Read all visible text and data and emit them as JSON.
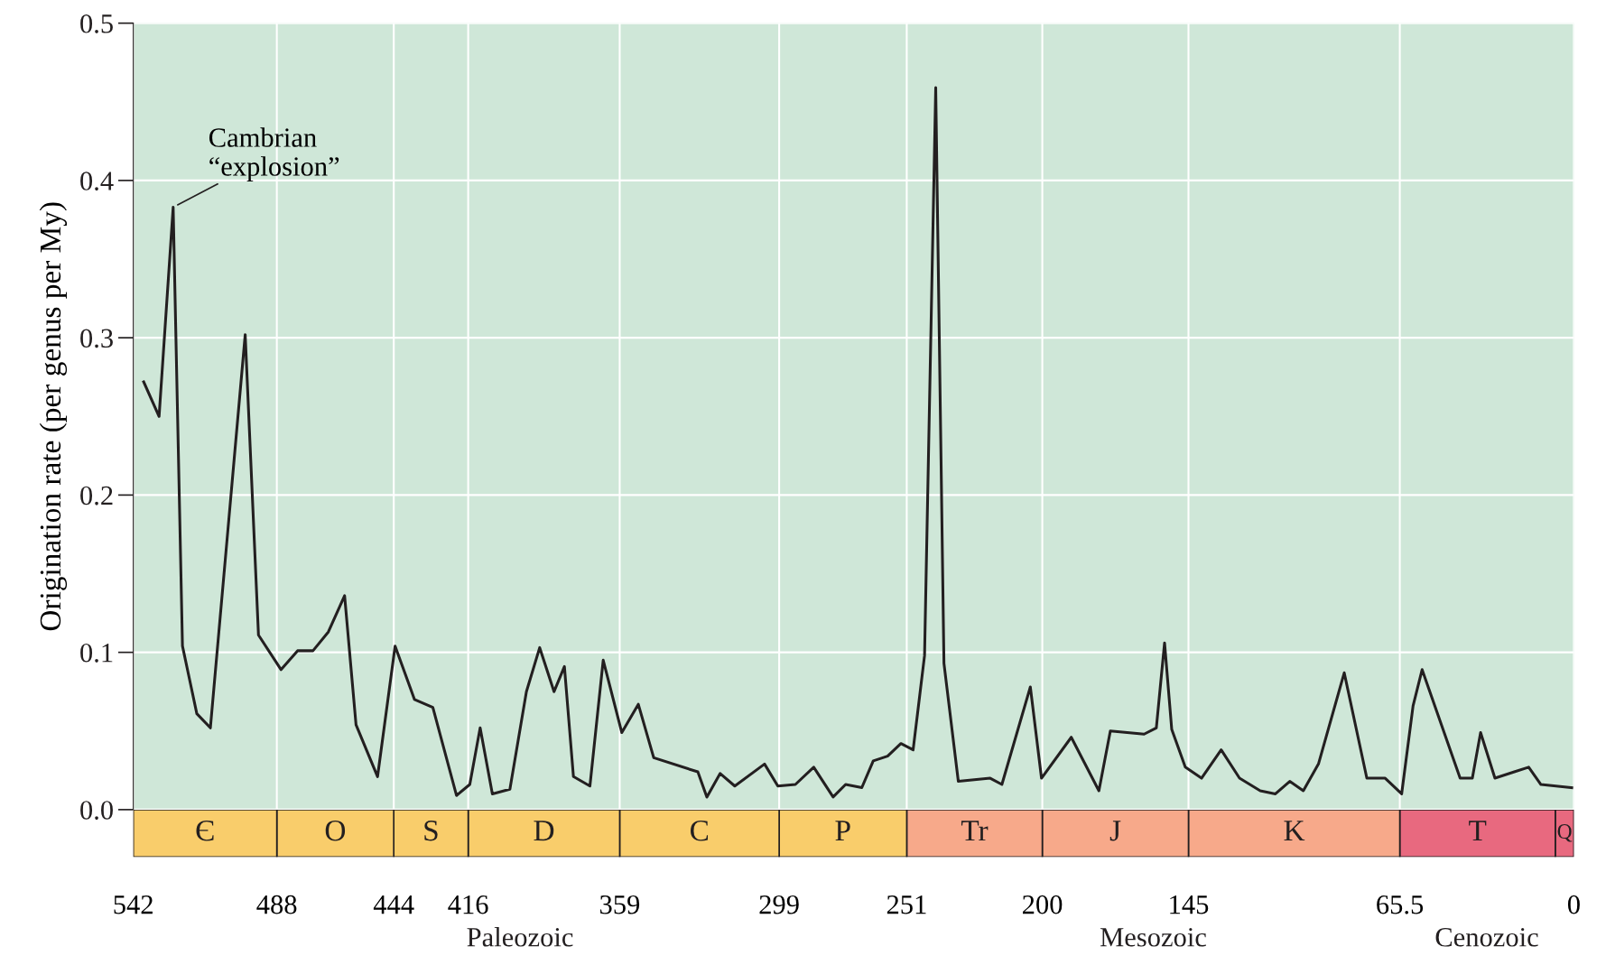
{
  "chart_data": [
    {
      "type": "line",
      "ylabel": "Origination rate (per genus per My)",
      "x": [
        538.1,
        532.3,
        527.0,
        523.5,
        518.1,
        513.0,
        499.9,
        494.9,
        486.4,
        480.2,
        474.4,
        468.6,
        462.5,
        458.2,
        450.1,
        443.5,
        436.2,
        429.3,
        420.4,
        415.4,
        411.5,
        406.9,
        400.3,
        394.1,
        389.1,
        383.7,
        379.8,
        376.4,
        370.2,
        365.2,
        358.2,
        352.0,
        346.2,
        329.6,
        326.2,
        321.2,
        315.7,
        304.5,
        299.5,
        292.9,
        286.0,
        278.7,
        274.0,
        267.9,
        263.6,
        258.2,
        253.2,
        248.6,
        244.3,
        240.1,
        237.0,
        231.6,
        219.6,
        215.2,
        204.5,
        200.3,
        189.1,
        178.7,
        174.4,
        161.7,
        157.1,
        154.0,
        151.3,
        146.2,
        140.1,
        132.7,
        125.8,
        118.0,
        112.3,
        106.9,
        101.8,
        96.1,
        86.4,
        77.9,
        71.0,
        64.8,
        60.5,
        57.1,
        42.8,
        38.2,
        35.1,
        29.7,
        22.4,
        17.0,
        12.4,
        0.8
      ],
      "series": [
        {
          "color": "#231f20",
          "values": [
            0.272,
            0.25,
            0.383,
            0.104,
            0.061,
            0.052,
            0.302,
            0.111,
            0.089,
            0.101,
            0.101,
            0.113,
            0.136,
            0.054,
            0.021,
            0.104,
            0.07,
            0.065,
            0.009,
            0.016,
            0.052,
            0.01,
            0.013,
            0.075,
            0.103,
            0.075,
            0.091,
            0.021,
            0.015,
            0.095,
            0.049,
            0.067,
            0.033,
            0.024,
            0.008,
            0.023,
            0.015,
            0.029,
            0.015,
            0.016,
            0.027,
            0.008,
            0.016,
            0.014,
            0.031,
            0.034,
            0.042,
            0.038,
            0.098,
            0.459,
            0.093,
            0.018,
            0.02,
            0.016,
            0.078,
            0.02,
            0.046,
            0.012,
            0.05,
            0.048,
            0.052,
            0.106,
            0.051,
            0.027,
            0.02,
            0.038,
            0.02,
            0.012,
            0.01,
            0.018,
            0.012,
            0.029,
            0.087,
            0.02,
            0.02,
            0.01,
            0.066,
            0.089,
            0.02,
            0.02,
            0.049,
            0.02,
            0.024,
            0.027,
            0.016,
            0.014
          ]
        }
      ],
      "xlim": [
        542,
        0
      ],
      "ylim": [
        0,
        0.5
      ],
      "xticks": [
        542,
        488,
        444,
        416,
        359,
        299,
        251,
        200,
        145,
        65.5,
        0
      ],
      "yticks": [
        {
          "value": 0,
          "label": "0.0"
        },
        0.1,
        0.2,
        0.3,
        0.4,
        0.5
      ],
      "tick_labels": "y",
      "grid": true,
      "marker": "none",
      "line_style": "solid",
      "annotations": [
        {
          "text": "Cambrian\n“explosion”",
          "x": 527.0,
          "y": 0.383
        }
      ]
    },
    {
      "type": "bar",
      "orientation": "horizontal",
      "stacked": true,
      "categories": [
        null
      ],
      "xlim": [
        542,
        0
      ],
      "xticks": [
        542,
        488,
        444,
        416,
        359,
        299,
        251,
        200,
        145,
        65.5,
        0
      ],
      "tick_labels": "x",
      "series": [
        {
          "color": "#e8697f",
          "values": [
            7
          ],
          "value_labels": [
            "Q"
          ]
        },
        {
          "color": "#e8697f",
          "values": [
            58.5
          ],
          "value_labels": [
            "T"
          ]
        },
        {
          "color": "#f7a98a",
          "values": [
            79.5
          ],
          "value_labels": [
            "K"
          ]
        },
        {
          "color": "#f7a98a",
          "values": [
            55
          ],
          "value_labels": [
            "J"
          ]
        },
        {
          "color": "#f7a98a",
          "values": [
            51
          ],
          "value_labels": [
            "Tr"
          ]
        },
        {
          "color": "#f9cd6b",
          "values": [
            48
          ],
          "value_labels": [
            "P"
          ]
        },
        {
          "color": "#f9cd6b",
          "values": [
            60
          ],
          "value_labels": [
            "C"
          ]
        },
        {
          "color": "#f9cd6b",
          "values": [
            57
          ],
          "value_labels": [
            "D"
          ]
        },
        {
          "color": "#f9cd6b",
          "values": [
            28
          ],
          "value_labels": [
            "S"
          ]
        },
        {
          "color": "#f9cd6b",
          "values": [
            44
          ],
          "value_labels": [
            "O"
          ]
        },
        {
          "color": "#f9cd6b",
          "values": [
            54
          ],
          "value_labels": [
            "Є"
          ]
        }
      ],
      "annotations": [
        "Paleozoic",
        "Mesozoic",
        "Cenozoic"
      ]
    }
  ]
}
